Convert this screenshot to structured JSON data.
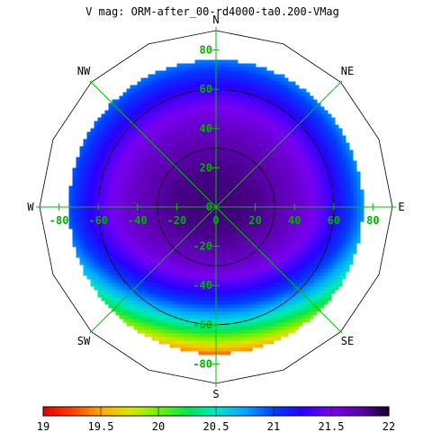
{
  "chart_data": {
    "type": "heatmap",
    "projection": "polar-sky",
    "title": "V mag: ORM-after_00-rd4000-ta0.200-VMag",
    "compass": {
      "N": "N",
      "NE": "NE",
      "E": "E",
      "SE": "SE",
      "S": "S",
      "SW": "SW",
      "W": "W",
      "NW": "NW"
    },
    "x_axis_ticks": [
      "-80",
      "-60",
      "-40",
      "-20",
      "0",
      "20",
      "40",
      "60",
      "80"
    ],
    "y_axis_ticks": [
      "80",
      "60",
      "40",
      "20",
      "0",
      "-20",
      "-40",
      "-60",
      "-80"
    ],
    "ring_radii": [
      30,
      60,
      90
    ],
    "map_radius": 75,
    "colorbar": {
      "min": 19,
      "max": 22,
      "tick_labels": [
        "19",
        "19.5",
        "20",
        "20.5",
        "21",
        "21.5",
        "22"
      ],
      "tick_values": [
        19,
        19.5,
        20,
        20.5,
        21,
        21.5,
        22
      ]
    },
    "field": {
      "zenith_value": 21.85,
      "edge_value_north": 20.85,
      "edge_value_south": 19.35,
      "edge_value_east": 20.8,
      "edge_value_west": 20.95
    },
    "grid": true,
    "grid_color": "#00c000",
    "label_color_axis": "#00b000"
  }
}
